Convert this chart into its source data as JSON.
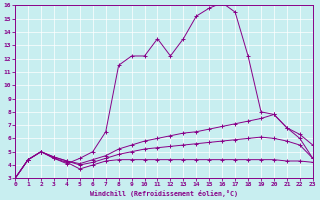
{
  "xlabel": "Windchill (Refroidissement éolien,°C)",
  "xlim": [
    0,
    23
  ],
  "ylim": [
    3,
    16
  ],
  "xticks": [
    0,
    1,
    2,
    3,
    4,
    5,
    6,
    7,
    8,
    9,
    10,
    11,
    12,
    13,
    14,
    15,
    16,
    17,
    18,
    19,
    20,
    21,
    22,
    23
  ],
  "yticks": [
    3,
    4,
    5,
    6,
    7,
    8,
    9,
    10,
    11,
    12,
    13,
    14,
    15,
    16
  ],
  "bg_color": "#c8eef0",
  "line_color": "#880088",
  "line1_x": [
    0,
    1,
    2,
    3,
    4,
    5,
    6,
    7,
    8,
    9,
    10,
    11,
    12,
    13,
    14,
    15,
    16,
    17,
    18,
    19,
    20,
    21,
    22,
    23
  ],
  "line1_y": [
    3.0,
    4.4,
    5.0,
    4.5,
    4.2,
    3.7,
    4.0,
    4.3,
    4.4,
    4.4,
    4.4,
    4.4,
    4.4,
    4.4,
    4.4,
    4.4,
    4.4,
    4.4,
    4.4,
    4.4,
    4.4,
    4.3,
    4.3,
    4.2
  ],
  "line2_x": [
    0,
    1,
    2,
    3,
    4,
    5,
    6,
    7,
    8,
    9,
    10,
    11,
    12,
    13,
    14,
    15,
    16,
    17,
    18,
    19,
    20,
    21,
    22,
    23
  ],
  "line2_y": [
    3.0,
    4.4,
    5.0,
    4.6,
    4.3,
    4.0,
    4.2,
    4.5,
    4.8,
    5.0,
    5.2,
    5.3,
    5.4,
    5.5,
    5.6,
    5.7,
    5.8,
    5.9,
    6.0,
    6.1,
    6.0,
    5.8,
    5.5,
    4.5
  ],
  "line3_x": [
    0,
    1,
    2,
    3,
    4,
    5,
    6,
    7,
    8,
    9,
    10,
    11,
    12,
    13,
    14,
    15,
    16,
    17,
    18,
    19,
    20,
    21,
    22,
    23
  ],
  "line3_y": [
    3.0,
    4.4,
    5.0,
    4.6,
    4.3,
    4.1,
    4.4,
    4.7,
    5.2,
    5.5,
    5.8,
    6.0,
    6.2,
    6.4,
    6.5,
    6.7,
    6.9,
    7.1,
    7.3,
    7.5,
    7.8,
    6.8,
    6.0,
    4.5
  ],
  "line4_x": [
    0,
    1,
    2,
    3,
    4,
    5,
    6,
    7,
    8,
    9,
    10,
    11,
    12,
    13,
    14,
    15,
    16,
    17,
    18,
    19,
    20,
    21,
    22,
    23
  ],
  "line4_y": [
    3.0,
    4.4,
    5.0,
    4.5,
    4.1,
    4.5,
    5.0,
    6.5,
    11.5,
    12.2,
    12.2,
    13.5,
    12.2,
    13.5,
    15.2,
    15.8,
    16.2,
    15.5,
    12.2,
    8.0,
    7.8,
    6.8,
    6.3,
    5.5
  ]
}
